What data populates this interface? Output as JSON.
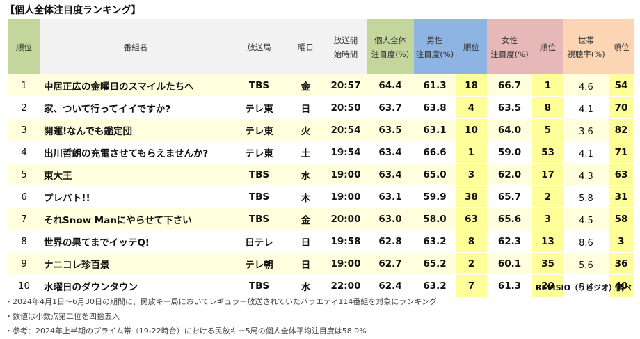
{
  "title": "【個人全体注目度ランキング】",
  "headers": {
    "rank": "順位",
    "name": "番組名",
    "station": "放送局",
    "day": "曜日",
    "start_line1": "放送開",
    "start_line2": "始時間",
    "all_line1": "個人全体",
    "all_line2": "注目度(%)",
    "male_line1": "男性",
    "male_line2": "注目度(%)",
    "male_rank": "順位",
    "female_line1": "女性",
    "female_line2": "注目度(%)",
    "female_rank": "順位",
    "view_line1": "世帯",
    "view_line2": "視聴率(%)",
    "view_rank": "順位"
  },
  "rows": [
    {
      "rank": "1",
      "name": "中居正広の金曜日のスマイルたちへ",
      "station": "TBS",
      "day": "金",
      "start": "20:57",
      "all": "64.4",
      "male": "61.3",
      "male_rank": "18",
      "female": "66.7",
      "female_rank": "1",
      "view": "4.6",
      "view_rank": "54"
    },
    {
      "rank": "2",
      "name": "家、ついて行ってイイですか?",
      "station": "テレ東",
      "day": "日",
      "start": "20:50",
      "all": "63.7",
      "male": "63.8",
      "male_rank": "4",
      "female": "63.5",
      "female_rank": "8",
      "view": "4.1",
      "view_rank": "70"
    },
    {
      "rank": "3",
      "name": "開運!なんでも鑑定団",
      "station": "テレ東",
      "day": "火",
      "start": "20:54",
      "all": "63.5",
      "male": "63.1",
      "male_rank": "10",
      "female": "64.0",
      "female_rank": "5",
      "view": "3.6",
      "view_rank": "82"
    },
    {
      "rank": "4",
      "name": "出川哲朗の充電させてもらえませんか?",
      "station": "テレ東",
      "day": "土",
      "start": "19:54",
      "all": "63.4",
      "male": "66.6",
      "male_rank": "1",
      "female": "59.0",
      "female_rank": "53",
      "view": "4.1",
      "view_rank": "71"
    },
    {
      "rank": "5",
      "name": "東大王",
      "station": "TBS",
      "day": "水",
      "start": "19:00",
      "all": "63.4",
      "male": "65.0",
      "male_rank": "3",
      "female": "62.0",
      "female_rank": "17",
      "view": "4.3",
      "view_rank": "63"
    },
    {
      "rank": "6",
      "name": "プレバト!!",
      "station": "TBS",
      "day": "木",
      "start": "19:00",
      "all": "63.1",
      "male": "59.9",
      "male_rank": "38",
      "female": "65.7",
      "female_rank": "2",
      "view": "5.8",
      "view_rank": "31"
    },
    {
      "rank": "7",
      "name": "それSnow Manにやらせて下さい",
      "station": "TBS",
      "day": "金",
      "start": "20:00",
      "all": "63.0",
      "male": "58.0",
      "male_rank": "63",
      "female": "65.6",
      "female_rank": "3",
      "view": "4.5",
      "view_rank": "58"
    },
    {
      "rank": "8",
      "name": "世界の果てまでイッテQ!",
      "station": "日テレ",
      "day": "日",
      "start": "19:58",
      "all": "62.8",
      "male": "63.2",
      "male_rank": "8",
      "female": "62.3",
      "female_rank": "13",
      "view": "8.6",
      "view_rank": "3"
    },
    {
      "rank": "9",
      "name": "ナニコレ珍百景",
      "station": "テレ朝",
      "day": "日",
      "start": "19:00",
      "all": "62.7",
      "male": "65.2",
      "male_rank": "2",
      "female": "60.1",
      "female_rank": "35",
      "view": "5.6",
      "view_rank": "36"
    },
    {
      "rank": "10",
      "name": "水曜日のダウンタウン",
      "station": "TBS",
      "day": "水",
      "start": "22:00",
      "all": "62.4",
      "male": "63.2",
      "male_rank": "7",
      "female": "61.3",
      "female_rank": "20",
      "view": "5.4",
      "view_rank": "40"
    }
  ],
  "source": "REVISIO（リビジオ）調べ",
  "notes": [
    "・2024年4月1日～6月30日の期間に、民放キー局においてレギュラー放送されていたバラエティ114番組を対象にランキング",
    "・数値は小数点第二位を四捨五入",
    "・参考：2024年上半期のプライム帯（19-22時台）における民放キー5局の個人全体平均注目度は58.9%"
  ]
}
